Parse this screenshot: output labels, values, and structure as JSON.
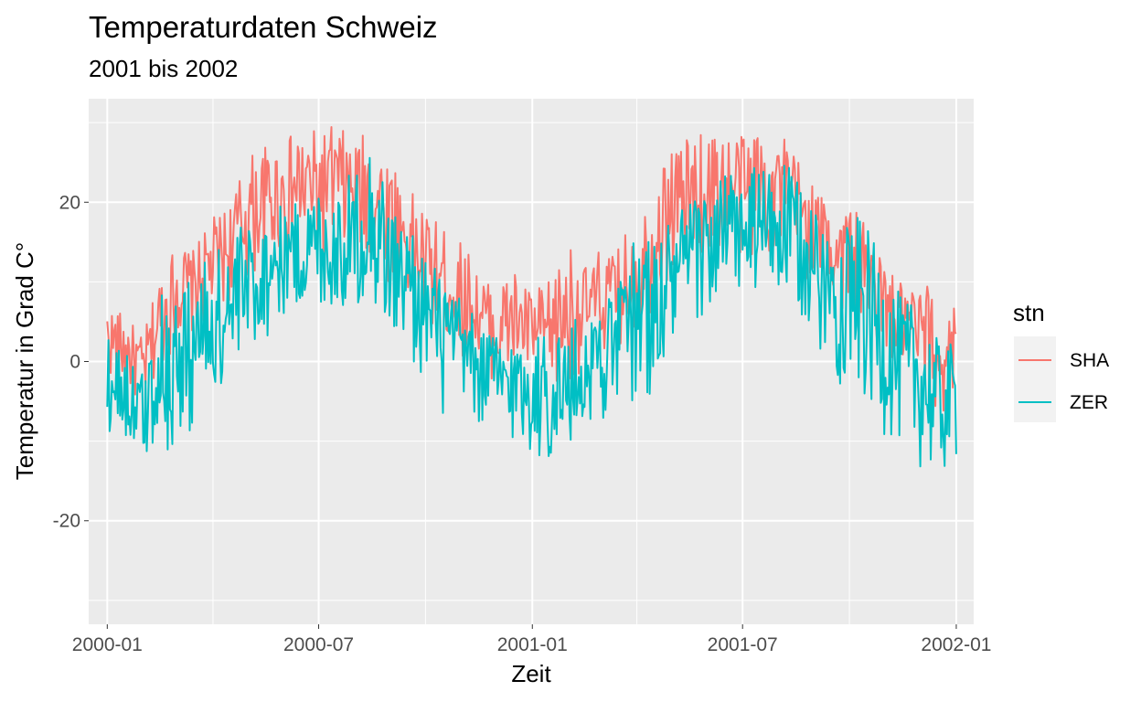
{
  "chart_data": {
    "type": "line",
    "title": "Temperaturdaten Schweiz",
    "subtitle": "2001 bis 2002",
    "xlabel": "Zeit",
    "ylabel": "Temperatur in Grad C°",
    "x_range": [
      "1999-12-16",
      "2002-01-16"
    ],
    "x_ticks": [
      "2000-01",
      "2000-07",
      "2001-01",
      "2001-07",
      "2002-01"
    ],
    "x_tick_dates": [
      "2000-01-01",
      "2000-07-01",
      "2001-01-01",
      "2001-07-01",
      "2002-01-01"
    ],
    "x_minor_dates": [
      "2000-04-01",
      "2000-10-01",
      "2001-04-01",
      "2001-10-01"
    ],
    "ylim": [
      -33,
      33
    ],
    "y_ticks": [
      -20,
      0,
      20
    ],
    "y_minor": [
      -30,
      -10,
      10,
      30
    ],
    "grid": true,
    "panel_background": "#ebebeb",
    "legend": {
      "title": "stn",
      "placement": "right"
    },
    "series": [
      {
        "name": "SHA",
        "color": "#f8766d",
        "x": [
          "2000-01-01",
          "2000-01-15",
          "2000-02-01",
          "2000-02-15",
          "2000-03-01",
          "2000-03-15",
          "2000-04-01",
          "2000-04-15",
          "2000-05-01",
          "2000-05-15",
          "2000-06-01",
          "2000-06-15",
          "2000-07-01",
          "2000-07-15",
          "2000-08-01",
          "2000-08-15",
          "2000-09-01",
          "2000-09-15",
          "2000-10-01",
          "2000-10-15",
          "2000-11-01",
          "2000-11-15",
          "2000-12-01",
          "2000-12-15",
          "2001-01-01",
          "2001-01-15",
          "2001-02-01",
          "2001-02-15",
          "2001-03-01",
          "2001-03-15",
          "2001-04-01",
          "2001-04-15",
          "2001-05-01",
          "2001-05-15",
          "2001-06-01",
          "2001-06-15",
          "2001-07-01",
          "2001-07-15",
          "2001-08-01",
          "2001-08-15",
          "2001-09-01",
          "2001-09-15",
          "2001-10-01",
          "2001-10-15",
          "2001-11-01",
          "2001-11-15",
          "2001-12-01",
          "2001-12-15",
          "2002-01-01"
        ],
        "min": [
          -2,
          -4,
          -6,
          -2,
          2,
          3,
          5,
          7,
          9,
          11,
          12,
          13,
          12,
          13,
          12,
          11,
          9,
          7,
          4,
          2,
          0,
          -1,
          -3,
          -3,
          -3,
          -5,
          -4,
          -1,
          0,
          1,
          3,
          6,
          10,
          11,
          12,
          13,
          12,
          12,
          12,
          11,
          9,
          7,
          5,
          3,
          0,
          -2,
          -6,
          -10,
          -6
        ],
        "max": [
          7,
          6,
          3,
          11,
          15,
          14,
          18,
          20,
          26,
          27,
          28,
          29,
          29,
          30,
          28,
          29,
          26,
          22,
          19,
          17,
          15,
          12,
          9,
          12,
          9,
          10,
          15,
          12,
          14,
          14,
          19,
          21,
          28,
          28,
          29,
          29,
          29,
          30,
          29,
          27,
          22,
          20,
          20,
          17,
          12,
          10,
          10,
          9,
          7
        ]
      },
      {
        "name": "ZER",
        "color": "#00bfc4",
        "x": [
          "2000-01-01",
          "2000-01-15",
          "2000-02-01",
          "2000-02-15",
          "2000-03-01",
          "2000-03-15",
          "2000-04-01",
          "2000-04-15",
          "2000-05-01",
          "2000-05-15",
          "2000-06-01",
          "2000-06-15",
          "2000-07-01",
          "2000-07-15",
          "2000-08-01",
          "2000-08-15",
          "2000-09-01",
          "2000-09-15",
          "2000-10-01",
          "2000-10-15",
          "2000-11-01",
          "2000-11-15",
          "2000-12-01",
          "2000-12-15",
          "2001-01-01",
          "2001-01-15",
          "2001-02-01",
          "2001-02-15",
          "2001-03-01",
          "2001-03-15",
          "2001-04-01",
          "2001-04-15",
          "2001-05-01",
          "2001-05-15",
          "2001-06-01",
          "2001-06-15",
          "2001-07-01",
          "2001-07-15",
          "2001-08-01",
          "2001-08-15",
          "2001-09-01",
          "2001-09-15",
          "2001-10-01",
          "2001-10-15",
          "2001-11-01",
          "2001-11-15",
          "2001-12-01",
          "2001-12-15",
          "2002-01-01"
        ],
        "min": [
          -9,
          -10,
          -15,
          -11,
          -14,
          -10,
          -7,
          -6,
          -2,
          2,
          5,
          5,
          6,
          4,
          6,
          6,
          2,
          -1,
          -3,
          -8,
          -7,
          -9,
          -10,
          -11,
          -13,
          -14,
          -14,
          -10,
          -8,
          -6,
          -6,
          -5,
          -2,
          3,
          5,
          6,
          7,
          7,
          6,
          5,
          2,
          -2,
          -5,
          -7,
          -10,
          -12,
          -14,
          -16,
          -14
        ],
        "max": [
          3,
          2,
          -1,
          9,
          9,
          12,
          14,
          16,
          18,
          18,
          20,
          20,
          22,
          22,
          24,
          28,
          20,
          18,
          14,
          11,
          8,
          5,
          4,
          3,
          4,
          4,
          5,
          6,
          8,
          9,
          17,
          15,
          19,
          20,
          22,
          24,
          23,
          25,
          25,
          24,
          19,
          16,
          20,
          17,
          12,
          8,
          7,
          3,
          2
        ]
      }
    ]
  }
}
